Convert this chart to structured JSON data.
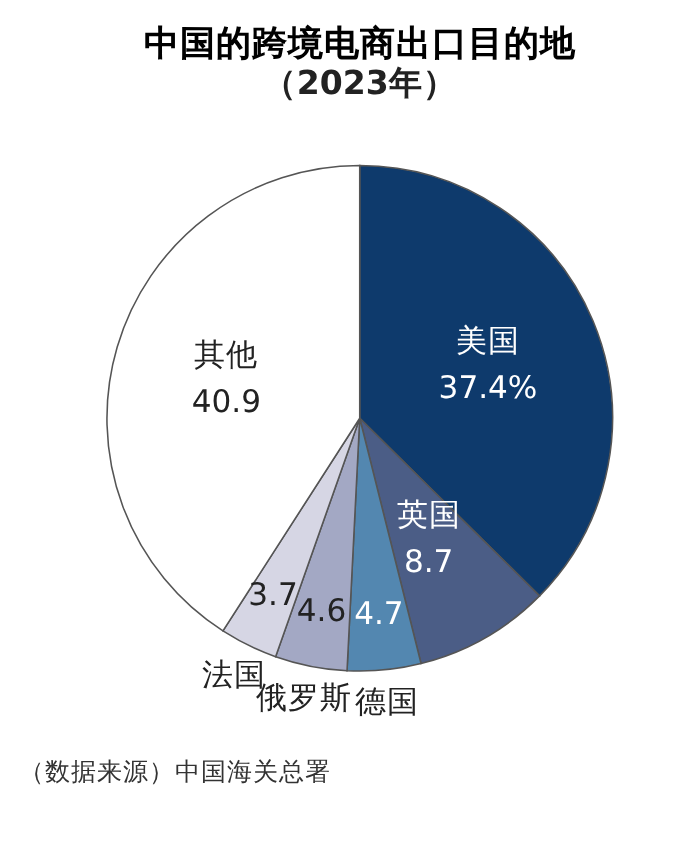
{
  "chart_data": {
    "type": "pie",
    "title": "中国的跨境电商出口目的地",
    "subtitle": "（2023年）",
    "categories": [
      "美国",
      "英国",
      "德国",
      "俄罗斯",
      "法国",
      "其他"
    ],
    "values": [
      37.4,
      8.7,
      4.7,
      4.6,
      3.7,
      40.9
    ],
    "value_labels": [
      "37.4%",
      "8.7",
      "4.7",
      "4.6",
      "3.7",
      "40.9"
    ],
    "colors": [
      "#0e3a6c",
      "#4b5d86",
      "#5387b0",
      "#a3a8c4",
      "#d6d6e4",
      "#ffffff"
    ],
    "annotations": [
      "（数据来源）中国海关总署"
    ],
    "legend": false
  }
}
